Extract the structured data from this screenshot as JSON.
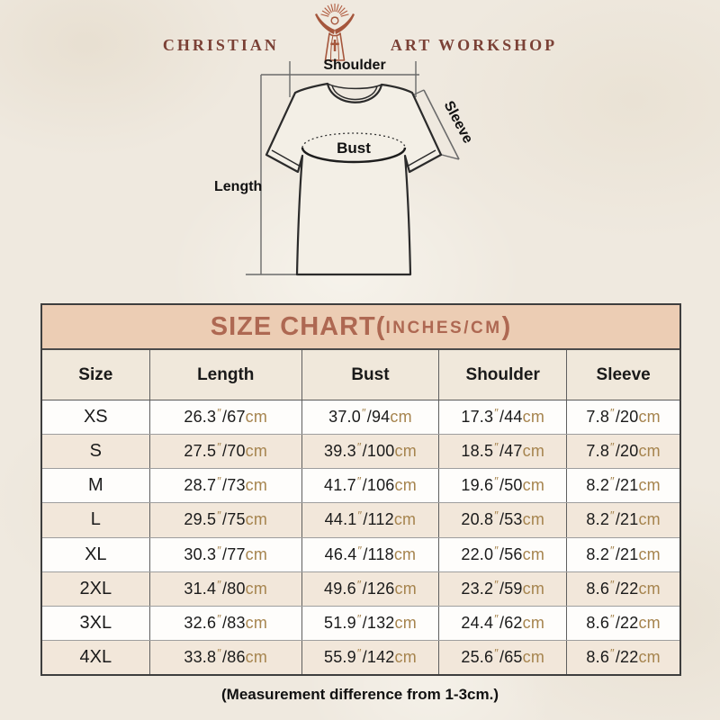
{
  "logo": {
    "left_text": "CHRISTIAN",
    "right_text": "ART WORKSHOP",
    "icon": "jesus-rays-icon",
    "text_color": "#7b4136",
    "icon_color": "#a5563c"
  },
  "diagram": {
    "shoulder_label": "Shoulder",
    "sleeve_label": "Sleeve",
    "bust_label": "Bust",
    "length_label": "Length"
  },
  "chart_data": {
    "type": "table",
    "title_main": "SIZE CHART(",
    "title_unit": "INCHES/CM",
    "title_close": ")",
    "columns": [
      "Size",
      "Length",
      "Bust",
      "Shoulder",
      "Sleeve"
    ],
    "units": {
      "inch_mark": "″",
      "cm_label": "cm"
    },
    "rows": [
      {
        "size": "XS",
        "measurements": [
          [
            "26.3",
            "67"
          ],
          [
            "37.0",
            "94"
          ],
          [
            "17.3",
            "44"
          ],
          [
            "7.8",
            "20"
          ]
        ]
      },
      {
        "size": "S",
        "measurements": [
          [
            "27.5",
            "70"
          ],
          [
            "39.3",
            "100"
          ],
          [
            "18.5",
            "47"
          ],
          [
            "7.8",
            "20"
          ]
        ]
      },
      {
        "size": "M",
        "measurements": [
          [
            "28.7",
            "73"
          ],
          [
            "41.7",
            "106"
          ],
          [
            "19.6",
            "50"
          ],
          [
            "8.2",
            "21"
          ]
        ]
      },
      {
        "size": "L",
        "measurements": [
          [
            "29.5",
            "75"
          ],
          [
            "44.1",
            "112"
          ],
          [
            "20.8",
            "53"
          ],
          [
            "8.2",
            "21"
          ]
        ]
      },
      {
        "size": "XL",
        "measurements": [
          [
            "30.3",
            "77"
          ],
          [
            "46.4",
            "118"
          ],
          [
            "22.0",
            "56"
          ],
          [
            "8.2",
            "21"
          ]
        ]
      },
      {
        "size": "2XL",
        "measurements": [
          [
            "31.4",
            "80"
          ],
          [
            "49.6",
            "126"
          ],
          [
            "23.2",
            "59"
          ],
          [
            "8.6",
            "22"
          ]
        ]
      },
      {
        "size": "3XL",
        "measurements": [
          [
            "32.6",
            "83"
          ],
          [
            "51.9",
            "132"
          ],
          [
            "24.4",
            "62"
          ],
          [
            "8.6",
            "22"
          ]
        ]
      },
      {
        "size": "4XL",
        "measurements": [
          [
            "33.8",
            "86"
          ],
          [
            "55.9",
            "142"
          ],
          [
            "25.6",
            "65"
          ],
          [
            "8.6",
            "22"
          ]
        ]
      }
    ],
    "colors": {
      "title_bg": "#eccdb4",
      "title_text": "#ae6852",
      "header_bg": "#f0e8db",
      "row_bg": "#fefdfb",
      "row_alt_bg": "#f2e7da",
      "unit_text": "#a6844e"
    }
  },
  "footnote": "(Measurement difference from 1-3cm.)"
}
